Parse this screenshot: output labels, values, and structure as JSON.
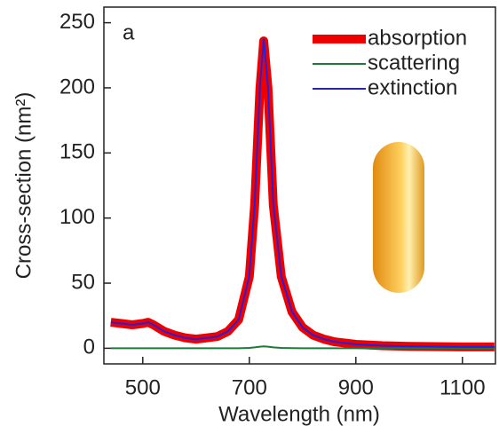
{
  "chart_data": {
    "type": "line",
    "annotation": "a",
    "xlabel": "Wavelength (nm)",
    "ylabel": "Cross-section (nm²)",
    "x": [
      440,
      460,
      480,
      500,
      510,
      520,
      540,
      560,
      580,
      600,
      620,
      640,
      660,
      680,
      700,
      710,
      720,
      727,
      735,
      745,
      760,
      780,
      800,
      820,
      840,
      860,
      900,
      950,
      1000,
      1100,
      1160
    ],
    "series": [
      {
        "name": "absorption",
        "color": "#ee0000",
        "width": 10,
        "values": [
          20,
          19,
          18,
          19,
          20,
          18,
          13,
          10,
          8,
          7,
          8,
          9,
          13,
          22,
          55,
          110,
          200,
          236,
          200,
          110,
          55,
          28,
          16,
          10,
          7,
          5,
          3,
          2,
          1.5,
          1,
          1
        ]
      },
      {
        "name": "scattering",
        "color": "#1a7a3a",
        "width": 2,
        "values": [
          0,
          0,
          0,
          0,
          0,
          0,
          0,
          0,
          0,
          0,
          0,
          0,
          0,
          0,
          0.3,
          0.7,
          1.2,
          1.4,
          1.2,
          0.7,
          0.3,
          0.1,
          0,
          0,
          0,
          0,
          0,
          0,
          0,
          0,
          0
        ]
      },
      {
        "name": "extinction",
        "color": "#2222dd",
        "width": 2,
        "values": [
          20,
          19,
          18,
          19,
          20,
          18,
          13,
          10,
          8,
          7,
          8,
          9,
          13,
          22,
          55.3,
          110.7,
          201.2,
          237.4,
          201.2,
          110.7,
          55.3,
          28.1,
          16,
          10,
          7,
          5,
          3,
          2,
          1.5,
          1,
          1
        ]
      }
    ],
    "xlim": [
      427,
      1162
    ],
    "xticks": [
      500,
      700,
      900,
      1100
    ],
    "ylim": [
      -12,
      262
    ],
    "yticks": [
      0,
      50,
      100,
      150,
      200,
      250
    ],
    "legend": "upper right",
    "grid": false
  }
}
